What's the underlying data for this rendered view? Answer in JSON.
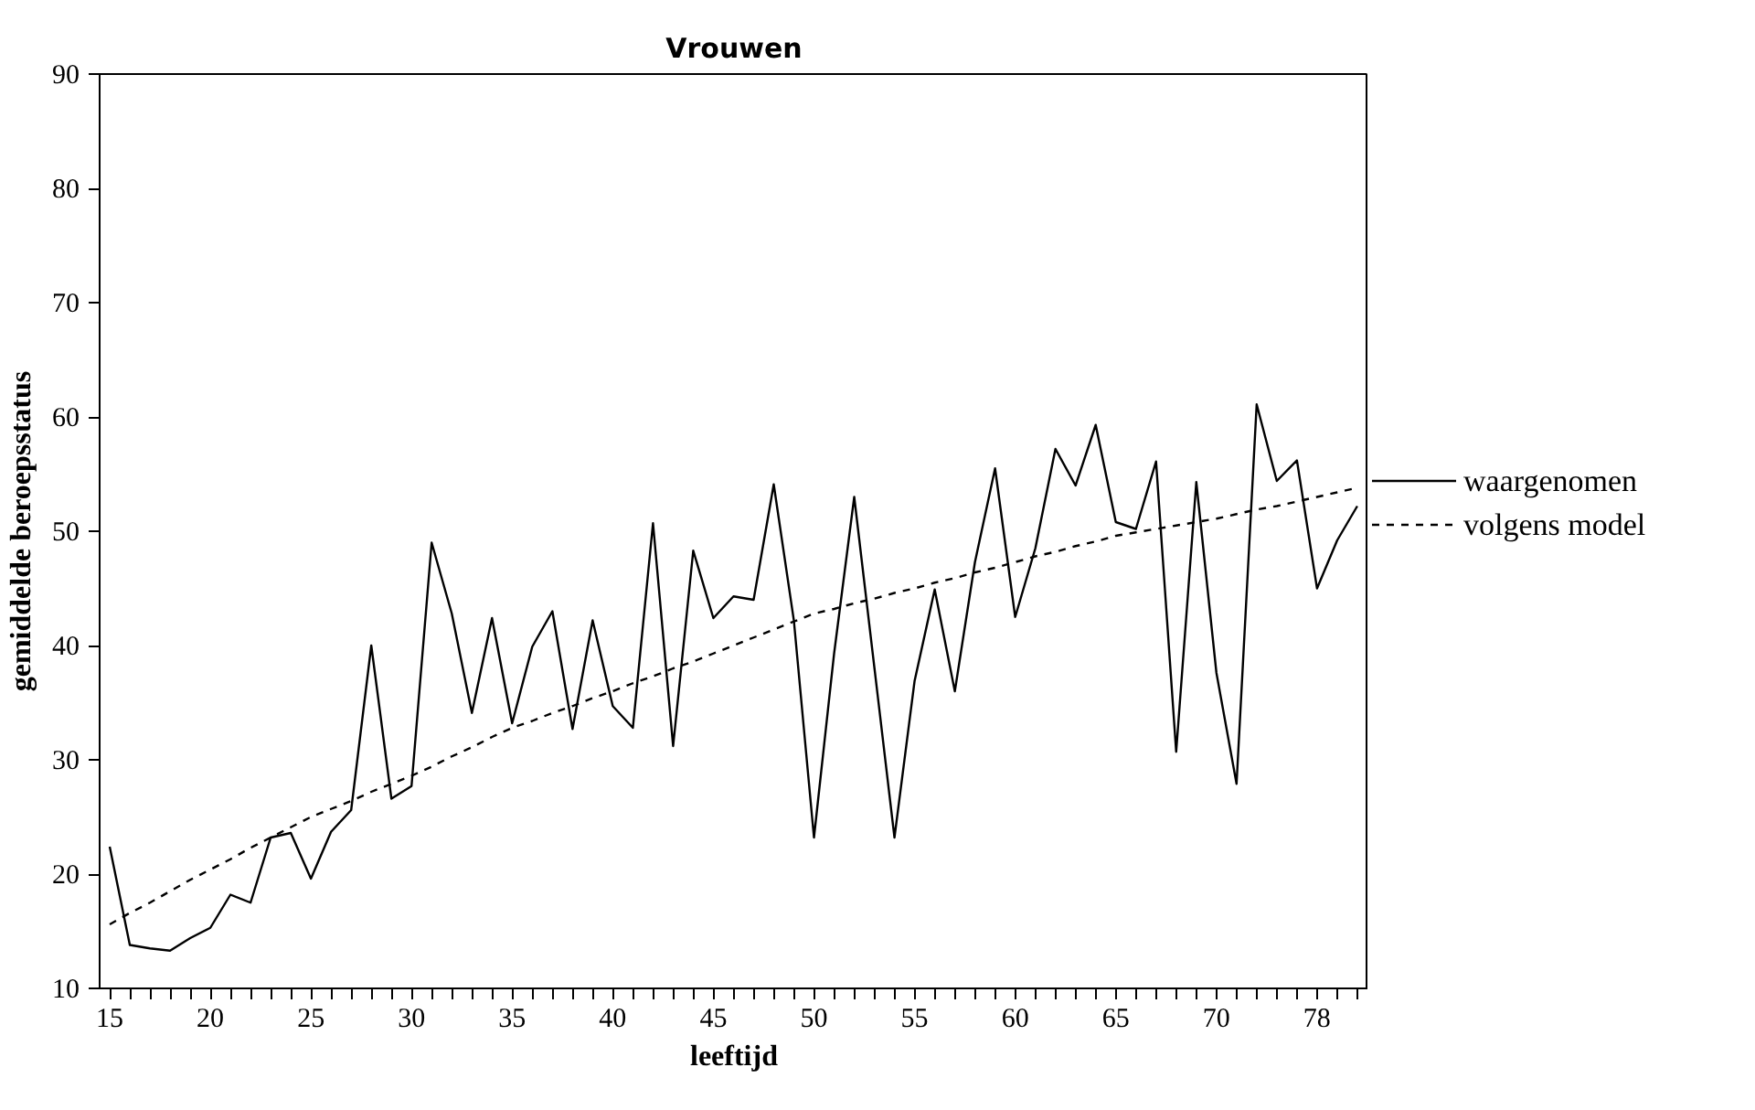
{
  "chart_data": {
    "type": "line",
    "title": "Vrouwen",
    "xlabel": "leeftijd",
    "ylabel": "gemiddelde beroepsstatus",
    "categories": [
      "15",
      null,
      null,
      null,
      null,
      "20",
      null,
      null,
      null,
      null,
      "25",
      null,
      null,
      null,
      null,
      "30",
      null,
      null,
      null,
      null,
      "35",
      null,
      null,
      null,
      null,
      "40",
      null,
      null,
      null,
      null,
      "45",
      null,
      null,
      null,
      null,
      "50",
      null,
      null,
      null,
      null,
      "55",
      null,
      null,
      null,
      null,
      "60",
      null,
      null,
      null,
      null,
      "65",
      null,
      null,
      null,
      null,
      "70",
      null,
      null,
      null,
      null,
      "78",
      null,
      null
    ],
    "ylim": [
      10,
      90
    ],
    "yticks": [
      10,
      20,
      30,
      40,
      50,
      60,
      70,
      80,
      90
    ],
    "grid": false,
    "legend": "right",
    "marker": "none",
    "series": [
      {
        "name": "waargenomen",
        "color": "#000000",
        "line_style": "solid",
        "values": [
          22.4,
          13.8,
          13.5,
          13.3,
          14.4,
          15.3,
          18.2,
          17.5,
          23.2,
          23.6,
          19.6,
          23.7,
          25.6,
          40.0,
          26.6,
          27.7,
          49.0,
          42.8,
          34.1,
          42.4,
          33.2,
          39.9,
          43.0,
          32.7,
          42.2,
          34.7,
          32.8,
          50.7,
          31.2,
          48.3,
          42.4,
          44.3,
          44.0,
          54.1,
          42.2,
          23.2,
          39.3,
          53.0,
          38.1,
          23.2,
          36.9,
          44.9,
          36.0,
          47.3,
          55.5,
          42.5,
          48.5,
          57.2,
          54.0,
          59.3,
          50.8,
          50.2,
          56.1,
          30.7,
          54.3,
          37.6,
          27.9,
          61.1,
          54.4,
          56.2,
          45.0,
          49.2,
          52.2
        ]
      },
      {
        "name": "volgens model",
        "color": "#000000",
        "line_style": "dashed",
        "values": [
          15.6,
          16.6,
          17.5,
          18.5,
          19.5,
          20.4,
          21.3,
          22.3,
          23.2,
          24.1,
          25.0,
          25.7,
          26.4,
          27.2,
          27.9,
          28.6,
          29.4,
          30.3,
          31.1,
          32.0,
          32.8,
          33.4,
          34.1,
          34.7,
          35.4,
          36.0,
          36.7,
          37.3,
          38.0,
          38.6,
          39.3,
          40.0,
          40.7,
          41.4,
          42.1,
          42.8,
          43.2,
          43.7,
          44.1,
          44.6,
          45.0,
          45.5,
          45.9,
          46.4,
          46.8,
          47.3,
          47.8,
          48.2,
          48.7,
          49.1,
          49.6,
          49.9,
          50.2,
          50.5,
          50.8,
          51.1,
          51.5,
          51.9,
          52.2,
          52.6,
          53.0,
          53.4,
          53.8
        ]
      }
    ]
  }
}
